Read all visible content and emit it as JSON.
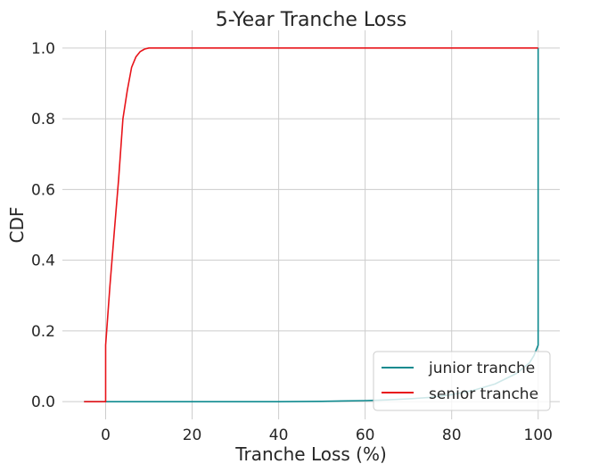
{
  "chart_data": {
    "type": "line",
    "title": "5-Year Tranche Loss",
    "xlabel": "Tranche Loss (%)",
    "ylabel": "CDF",
    "xlim": [
      -10,
      105
    ],
    "ylim": [
      -0.05,
      1.05
    ],
    "xticks": [
      0,
      20,
      40,
      60,
      80,
      100
    ],
    "yticks": [
      0.0,
      0.2,
      0.4,
      0.6,
      0.8,
      1.0
    ],
    "xtick_labels": [
      "0",
      "20",
      "40",
      "60",
      "80",
      "100"
    ],
    "ytick_labels": [
      "0.0",
      "0.2",
      "0.4",
      "0.6",
      "0.8",
      "1.0"
    ],
    "grid": true,
    "legend_position": "lower-right",
    "series": [
      {
        "name": "junior tranche",
        "color": "#0e8a8f",
        "x": [
          -5,
          0,
          20,
          40,
          50,
          60,
          65,
          70,
          75,
          80,
          85,
          90,
          95,
          98,
          99,
          100,
          100,
          100
        ],
        "y": [
          0.0,
          0.0,
          0.0,
          0.0,
          0.001,
          0.003,
          0.005,
          0.008,
          0.012,
          0.02,
          0.032,
          0.05,
          0.08,
          0.11,
          0.13,
          0.16,
          0.5,
          1.0
        ]
      },
      {
        "name": "senior tranche",
        "color": "#e8141a",
        "x": [
          -5,
          0,
          0,
          1,
          2,
          3,
          4,
          5,
          6,
          7,
          8,
          9,
          10,
          12,
          15,
          100,
          100
        ],
        "y": [
          0.0,
          0.0,
          0.16,
          0.33,
          0.48,
          0.63,
          0.8,
          0.88,
          0.945,
          0.975,
          0.99,
          0.997,
          1.0,
          1.0,
          1.0,
          1.0,
          1.0
        ]
      }
    ]
  }
}
